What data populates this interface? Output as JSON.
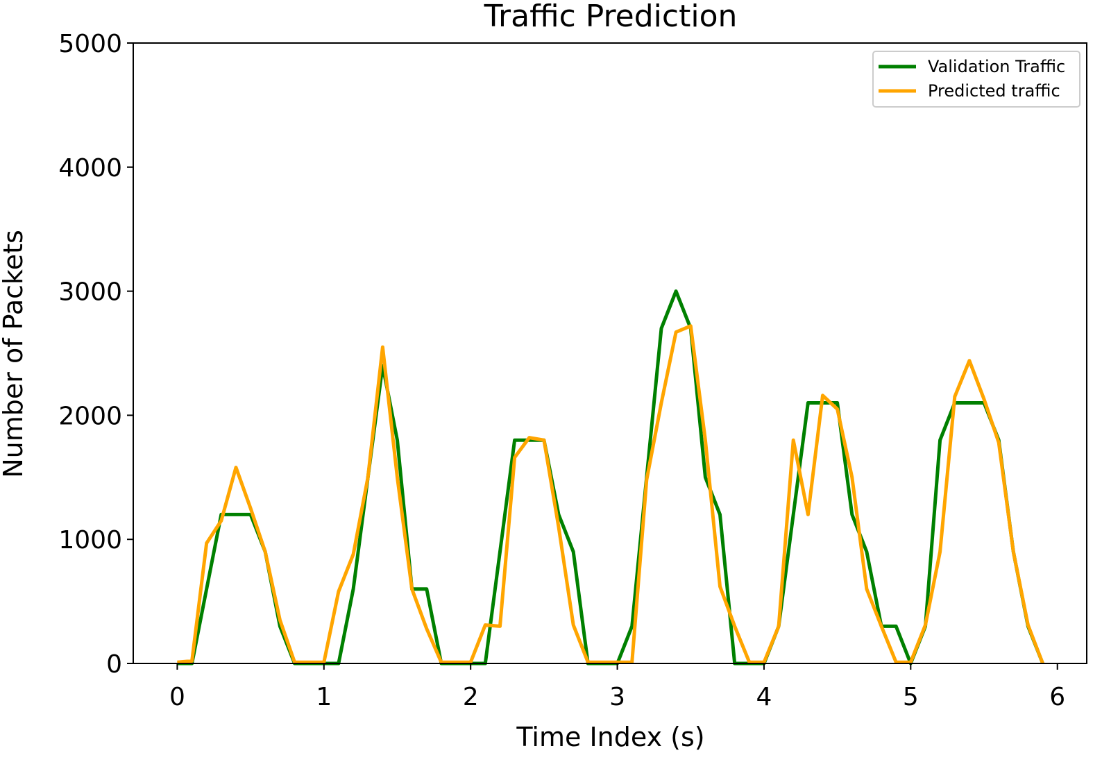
{
  "chart_data": {
    "type": "line",
    "title": "Traffic Prediction",
    "xlabel": "Time Index (s)",
    "ylabel": "Number of Packets",
    "xlim": [
      -0.3,
      6.2
    ],
    "ylim": [
      0,
      5000
    ],
    "xticks": [
      0,
      1,
      2,
      3,
      4,
      5,
      6
    ],
    "yticks": [
      0,
      1000,
      2000,
      3000,
      4000,
      5000
    ],
    "xtick_labels": [
      "0",
      "1",
      "2",
      "3",
      "4",
      "5",
      "6"
    ],
    "ytick_labels": [
      "0",
      "1000",
      "2000",
      "3000",
      "4000",
      "5000"
    ],
    "grid": false,
    "legend_position": "top-right",
    "x": [
      0.0,
      0.1,
      0.2,
      0.3,
      0.4,
      0.5,
      0.6,
      0.7,
      0.8,
      0.9,
      1.0,
      1.1,
      1.2,
      1.3,
      1.4,
      1.5,
      1.6,
      1.7,
      1.8,
      1.9,
      2.0,
      2.1,
      2.2,
      2.3,
      2.4,
      2.5,
      2.6,
      2.7,
      2.8,
      2.9,
      3.0,
      3.1,
      3.2,
      3.3,
      3.4,
      3.5,
      3.6,
      3.7,
      3.8,
      3.9,
      4.0,
      4.1,
      4.2,
      4.3,
      4.4,
      4.5,
      4.6,
      4.7,
      4.8,
      4.9,
      5.0,
      5.1,
      5.2,
      5.3,
      5.4,
      5.5,
      5.6,
      5.7,
      5.8,
      5.9
    ],
    "series": [
      {
        "name": "Validation Traffic",
        "color": "#008000",
        "values": [
          0,
          0,
          600,
          1200,
          1200,
          1200,
          900,
          300,
          0,
          0,
          0,
          0,
          600,
          1500,
          2400,
          1800,
          600,
          600,
          0,
          0,
          0,
          0,
          900,
          1800,
          1800,
          1800,
          1200,
          900,
          0,
          0,
          0,
          300,
          1500,
          2700,
          3000,
          2700,
          1500,
          1200,
          0,
          0,
          0,
          300,
          1200,
          2100,
          2100,
          2100,
          1200,
          900,
          300,
          300,
          0,
          300,
          1800,
          2100,
          2100,
          2100,
          1800,
          900,
          300,
          0
        ]
      },
      {
        "name": "Predicted traffic",
        "color": "#FFA500",
        "values": [
          10,
          20,
          970,
          1150,
          1580,
          1250,
          900,
          350,
          10,
          10,
          10,
          580,
          880,
          1500,
          2550,
          1500,
          600,
          280,
          10,
          10,
          10,
          310,
          300,
          1660,
          1820,
          1800,
          1100,
          310,
          10,
          10,
          10,
          10,
          1480,
          2100,
          2670,
          2720,
          1800,
          620,
          300,
          10,
          10,
          300,
          1800,
          1200,
          2160,
          2050,
          1500,
          600,
          300,
          10,
          10,
          310,
          900,
          2150,
          2440,
          2130,
          1780,
          900,
          310,
          0
        ]
      }
    ]
  }
}
